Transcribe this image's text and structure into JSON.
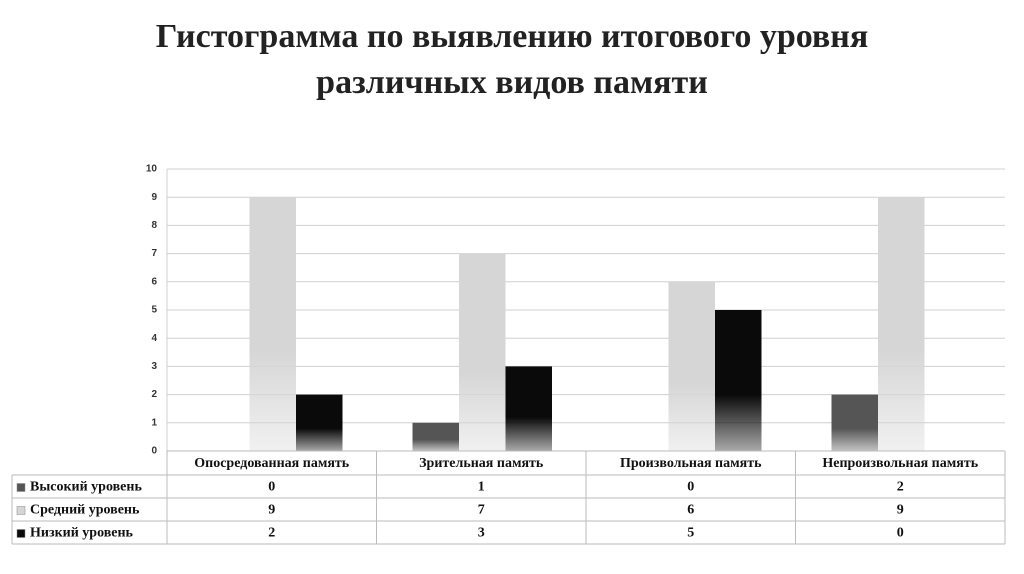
{
  "chart_data": {
    "type": "bar",
    "title": "Гистограмма по выявлению итогового уровня различных видов памяти",
    "categories": [
      "Опосредованная память",
      "Зрительная память",
      "Произвольная память",
      "Непроизвольная память"
    ],
    "series": [
      {
        "name": "Высокий уровень",
        "color": "#555555",
        "values": [
          0,
          1,
          0,
          2
        ]
      },
      {
        "name": "Средний уровень",
        "color": "#d6d6d6",
        "values": [
          9,
          7,
          6,
          9
        ]
      },
      {
        "name": "Низкий уровень",
        "color": "#0a0a0a",
        "values": [
          2,
          3,
          5,
          0
        ]
      }
    ],
    "ylim": [
      0,
      10
    ],
    "yticks": [
      0,
      1,
      2,
      3,
      4,
      5,
      6,
      7,
      8,
      9,
      10
    ],
    "grid": true
  }
}
